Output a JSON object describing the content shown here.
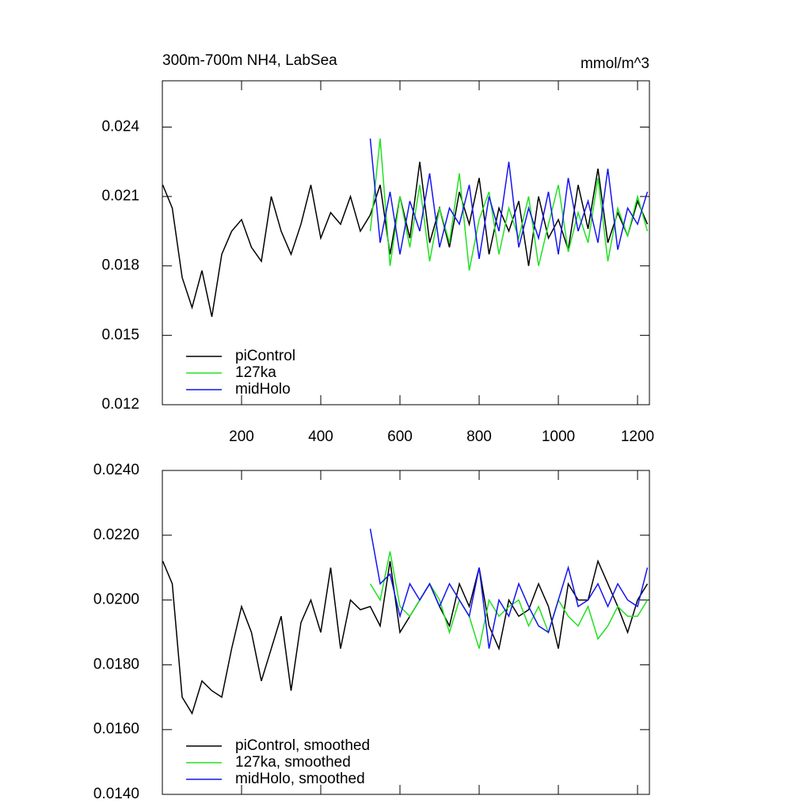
{
  "chart_data": [
    {
      "type": "line",
      "title": "300m-700m NH4, LabSea",
      "units": "mmol/m^3",
      "xlim": [
        0,
        1230
      ],
      "xticks": [
        200,
        400,
        600,
        800,
        1000,
        1200
      ],
      "ylim": [
        0.012,
        0.026
      ],
      "yticks": [
        0.012,
        0.015,
        0.018,
        0.021,
        0.024
      ],
      "legend": "lower left",
      "series": [
        {
          "name": "piControl",
          "color": "#000000",
          "x": [
            1,
            25,
            50,
            75,
            100,
            125,
            150,
            175,
            200,
            225,
            250,
            275,
            300,
            325,
            350,
            375,
            400,
            425,
            450,
            475,
            500,
            525,
            550,
            575,
            600,
            625,
            650,
            675,
            700,
            725,
            750,
            775,
            800,
            825,
            850,
            875,
            900,
            925,
            950,
            975,
            1000,
            1025,
            1050,
            1075,
            1100,
            1125,
            1150,
            1175,
            1200,
            1225
          ],
          "values": [
            0.0215,
            0.0205,
            0.0175,
            0.0162,
            0.0178,
            0.0158,
            0.0185,
            0.0195,
            0.02,
            0.0188,
            0.0182,
            0.021,
            0.0195,
            0.0185,
            0.0198,
            0.0215,
            0.0192,
            0.0203,
            0.0198,
            0.021,
            0.0195,
            0.0202,
            0.0215,
            0.0185,
            0.021,
            0.0192,
            0.0225,
            0.019,
            0.0205,
            0.0188,
            0.0212,
            0.0198,
            0.0218,
            0.0185,
            0.0205,
            0.0195,
            0.0208,
            0.018,
            0.021,
            0.0192,
            0.02,
            0.0187,
            0.0215,
            0.0196,
            0.0222,
            0.019,
            0.0203,
            0.0193,
            0.0208,
            0.0198
          ]
        },
        {
          "name": "127ka",
          "color": "#22e022",
          "x": [
            525,
            550,
            575,
            600,
            625,
            650,
            675,
            700,
            725,
            750,
            775,
            800,
            825,
            850,
            875,
            900,
            925,
            950,
            975,
            1000,
            1025,
            1050,
            1075,
            1100,
            1125,
            1150,
            1175,
            1200,
            1225
          ],
          "values": [
            0.0195,
            0.0235,
            0.018,
            0.021,
            0.0188,
            0.0215,
            0.0182,
            0.0205,
            0.019,
            0.022,
            0.0178,
            0.02,
            0.0212,
            0.0185,
            0.0205,
            0.0192,
            0.021,
            0.018,
            0.0198,
            0.0215,
            0.0186,
            0.0203,
            0.019,
            0.0218,
            0.0182,
            0.0205,
            0.0193,
            0.021,
            0.0195
          ]
        },
        {
          "name": "midHolo",
          "color": "#1414f0",
          "x": [
            525,
            550,
            575,
            600,
            625,
            650,
            675,
            700,
            725,
            750,
            775,
            800,
            825,
            850,
            875,
            900,
            925,
            950,
            975,
            1000,
            1025,
            1050,
            1075,
            1100,
            1125,
            1150,
            1175,
            1200,
            1225
          ],
          "values": [
            0.0235,
            0.019,
            0.0212,
            0.0185,
            0.0208,
            0.0195,
            0.022,
            0.0188,
            0.0205,
            0.0198,
            0.0215,
            0.0183,
            0.021,
            0.0195,
            0.0225,
            0.0188,
            0.0205,
            0.0192,
            0.0212,
            0.0185,
            0.0218,
            0.0195,
            0.0208,
            0.019,
            0.0222,
            0.0187,
            0.0205,
            0.0198,
            0.0212
          ]
        }
      ]
    },
    {
      "type": "line",
      "xlim": [
        0,
        1230
      ],
      "xticks": [
        200,
        400,
        600,
        800,
        1000,
        1200
      ],
      "ylim": [
        0.014,
        0.024
      ],
      "yticks": [
        {
          "value": 0.014,
          "label": "0.0140"
        },
        {
          "value": 0.016,
          "label": "0.0160"
        },
        {
          "value": 0.018,
          "label": "0.0180"
        },
        {
          "value": 0.02,
          "label": "0.0200"
        },
        {
          "value": 0.022,
          "label": "0.0220"
        },
        {
          "value": 0.024,
          "label": "0.0240"
        }
      ],
      "legend": "lower left",
      "series": [
        {
          "name": "piControl, smoothed",
          "color": "#000000",
          "x": [
            1,
            25,
            50,
            75,
            100,
            125,
            150,
            175,
            200,
            225,
            250,
            275,
            300,
            325,
            350,
            375,
            400,
            425,
            450,
            475,
            500,
            525,
            550,
            575,
            600,
            625,
            650,
            675,
            700,
            725,
            750,
            775,
            800,
            825,
            850,
            875,
            900,
            925,
            950,
            975,
            1000,
            1025,
            1050,
            1075,
            1100,
            1125,
            1150,
            1175,
            1200,
            1225
          ],
          "values": [
            0.0212,
            0.0205,
            0.017,
            0.0165,
            0.0175,
            0.0172,
            0.017,
            0.0185,
            0.0198,
            0.019,
            0.0175,
            0.0185,
            0.0195,
            0.0172,
            0.0193,
            0.02,
            0.019,
            0.021,
            0.0185,
            0.02,
            0.0197,
            0.0198,
            0.0192,
            0.0212,
            0.019,
            0.0195,
            0.02,
            0.0205,
            0.0198,
            0.0192,
            0.0205,
            0.0198,
            0.021,
            0.0192,
            0.0185,
            0.02,
            0.0195,
            0.0197,
            0.0205,
            0.0198,
            0.0185,
            0.0205,
            0.02,
            0.02,
            0.0212,
            0.0205,
            0.0198,
            0.019,
            0.02,
            0.0205
          ]
        },
        {
          "name": "127ka, smoothed",
          "color": "#22e022",
          "x": [
            525,
            550,
            575,
            600,
            625,
            650,
            675,
            700,
            725,
            750,
            775,
            800,
            825,
            850,
            875,
            900,
            925,
            950,
            975,
            1000,
            1025,
            1050,
            1075,
            1100,
            1125,
            1150,
            1175,
            1200,
            1225
          ],
          "values": [
            0.0205,
            0.02,
            0.0215,
            0.0198,
            0.0195,
            0.02,
            0.0205,
            0.02,
            0.019,
            0.02,
            0.0195,
            0.0185,
            0.02,
            0.0195,
            0.0198,
            0.02,
            0.0192,
            0.0198,
            0.019,
            0.02,
            0.0195,
            0.0192,
            0.0198,
            0.0188,
            0.0192,
            0.0198,
            0.0195,
            0.0195,
            0.02
          ]
        },
        {
          "name": "midHolo, smoothed",
          "color": "#1414f0",
          "x": [
            525,
            550,
            575,
            600,
            625,
            650,
            675,
            700,
            725,
            750,
            775,
            800,
            825,
            850,
            875,
            900,
            925,
            950,
            975,
            1000,
            1025,
            1050,
            1075,
            1100,
            1125,
            1150,
            1175,
            1200,
            1225
          ],
          "values": [
            0.0222,
            0.0205,
            0.0208,
            0.0195,
            0.0205,
            0.02,
            0.0205,
            0.0198,
            0.0205,
            0.02,
            0.0195,
            0.021,
            0.0185,
            0.02,
            0.0195,
            0.0205,
            0.0198,
            0.0192,
            0.019,
            0.02,
            0.021,
            0.0198,
            0.02,
            0.0205,
            0.0198,
            0.0205,
            0.02,
            0.0198,
            0.021
          ]
        }
      ]
    }
  ]
}
